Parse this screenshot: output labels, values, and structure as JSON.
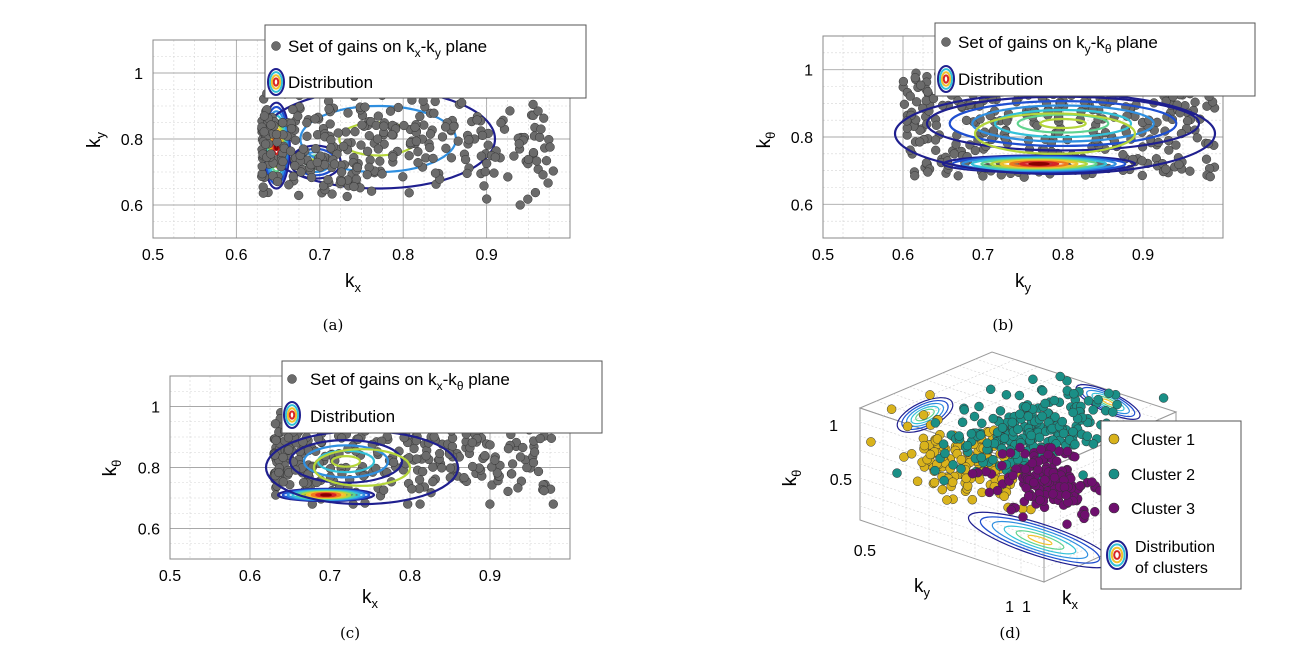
{
  "colors": {
    "points": "#6b6b6b",
    "point_edge": "#333333",
    "contour_palette": [
      "#1f1f8f",
      "#1f4fd0",
      "#2f8fe0",
      "#33c1d8",
      "#5fd38f",
      "#b5d63a",
      "#f2c22d",
      "#f07a1e",
      "#d62626",
      "#8b0000"
    ],
    "cluster1": "#d9b31c",
    "cluster2": "#1a8f86",
    "cluster3": "#6e0f6e"
  },
  "chart_data": [
    {
      "type": "scatter",
      "panel": "a",
      "caption": "(a)",
      "xlabel_base": "k",
      "xlabel_sub": "x",
      "ylabel_base": "k",
      "ylabel_sub": "y",
      "xlim": [
        0.5,
        1.0
      ],
      "ylim": [
        0.5,
        1.1
      ],
      "xticks": [
        "0.5",
        "0.6",
        "0.7",
        "0.8",
        "0.9"
      ],
      "yticks": [
        "0.6",
        "0.8",
        "1"
      ],
      "grid": true,
      "legend_position": "top-right",
      "legend": [
        {
          "kind": "points",
          "base": "Set of gains on k",
          "sub1": "x",
          "mid": "-k",
          "sub2": "y",
          "tail": " plane"
        },
        {
          "kind": "distribution",
          "base": "Distribution"
        }
      ],
      "scatter": {
        "n": 330,
        "x_range": [
          0.63,
          0.98
        ],
        "y_range": [
          0.6,
          0.95
        ],
        "concentration": "left-low"
      },
      "contours": [
        {
          "cx": 0.648,
          "cy": 0.78,
          "rx": 0.016,
          "ry": 0.13,
          "levels": 10
        },
        {
          "cx": 0.695,
          "cy": 0.73,
          "rx": 0.03,
          "ry": 0.05,
          "levels": 5
        },
        {
          "cx": 0.77,
          "cy": 0.8,
          "rx": 0.14,
          "ry": 0.15,
          "levels": 3
        }
      ]
    },
    {
      "type": "scatter",
      "panel": "b",
      "caption": "(b)",
      "xlabel_base": "k",
      "xlabel_sub": "y",
      "ylabel_base": "k",
      "ylabel_sub": "θ",
      "xlim": [
        0.5,
        1.0
      ],
      "ylim": [
        0.5,
        1.1
      ],
      "xticks": [
        "0.5",
        "0.6",
        "0.7",
        "0.8",
        "0.9"
      ],
      "yticks": [
        "0.6",
        "0.8",
        "1"
      ],
      "grid": true,
      "legend_position": "top-right",
      "legend": [
        {
          "kind": "points",
          "base": "Set of gains on k",
          "sub1": "y",
          "mid": "-k",
          "sub2": "θ",
          "tail": " plane"
        },
        {
          "kind": "distribution",
          "base": "Distribution"
        }
      ],
      "scatter": {
        "n": 380,
        "x_range": [
          0.6,
          0.99
        ],
        "y_range": [
          0.68,
          0.99
        ],
        "concentration": "spread"
      },
      "contours": [
        {
          "cx": 0.77,
          "cy": 0.72,
          "rx": 0.12,
          "ry": 0.025,
          "levels": 10
        },
        {
          "cx": 0.8,
          "cy": 0.84,
          "rx": 0.17,
          "ry": 0.08,
          "levels": 6
        },
        {
          "cx": 0.79,
          "cy": 0.81,
          "rx": 0.2,
          "ry": 0.12,
          "levels": 2
        }
      ]
    },
    {
      "type": "scatter",
      "panel": "c",
      "caption": "(c)",
      "xlabel_base": "k",
      "xlabel_sub": "x",
      "ylabel_base": "k",
      "ylabel_sub": "θ",
      "xlim": [
        0.5,
        1.0
      ],
      "ylim": [
        0.5,
        1.1
      ],
      "xticks": [
        "0.5",
        "0.6",
        "0.7",
        "0.8",
        "0.9"
      ],
      "yticks": [
        "0.6",
        "0.8",
        "1"
      ],
      "grid": true,
      "legend_position": "top-right",
      "legend": [
        {
          "kind": "points",
          "base": "Set of gains on k",
          "sub1": "x",
          "mid": "-k",
          "sub2": "θ",
          "tail": " plane"
        },
        {
          "kind": "distribution",
          "base": "Distribution"
        }
      ],
      "scatter": {
        "n": 330,
        "x_range": [
          0.63,
          0.98
        ],
        "y_range": [
          0.68,
          0.98
        ],
        "concentration": "left-low"
      },
      "contours": [
        {
          "cx": 0.695,
          "cy": 0.71,
          "rx": 0.06,
          "ry": 0.02,
          "levels": 10
        },
        {
          "cx": 0.72,
          "cy": 0.82,
          "rx": 0.07,
          "ry": 0.07,
          "levels": 4
        },
        {
          "cx": 0.74,
          "cy": 0.8,
          "rx": 0.12,
          "ry": 0.12,
          "levels": 2
        }
      ]
    },
    {
      "type": "scatter3d",
      "panel": "d",
      "caption": "(d)",
      "xlabel_base": "k",
      "xlabel_sub": "x",
      "ylabel_base": "k",
      "ylabel_sub": "y",
      "zlabel_base": "k",
      "zlabel_sub": "θ",
      "zticks": [
        "1",
        "0.5"
      ],
      "yticks": [
        "0.5",
        "1"
      ],
      "xticks": [
        "1"
      ],
      "legend_position": "right",
      "series": [
        {
          "name": "Cluster 1",
          "color": "#d9b31c",
          "n": 150
        },
        {
          "name": "Cluster 2",
          "color": "#1a8f86",
          "n": 230
        },
        {
          "name": "Cluster 3",
          "color": "#6e0f6e",
          "n": 150
        }
      ],
      "legend_distribution_line1": "Distribution",
      "legend_distribution_line2": "of clusters"
    }
  ]
}
